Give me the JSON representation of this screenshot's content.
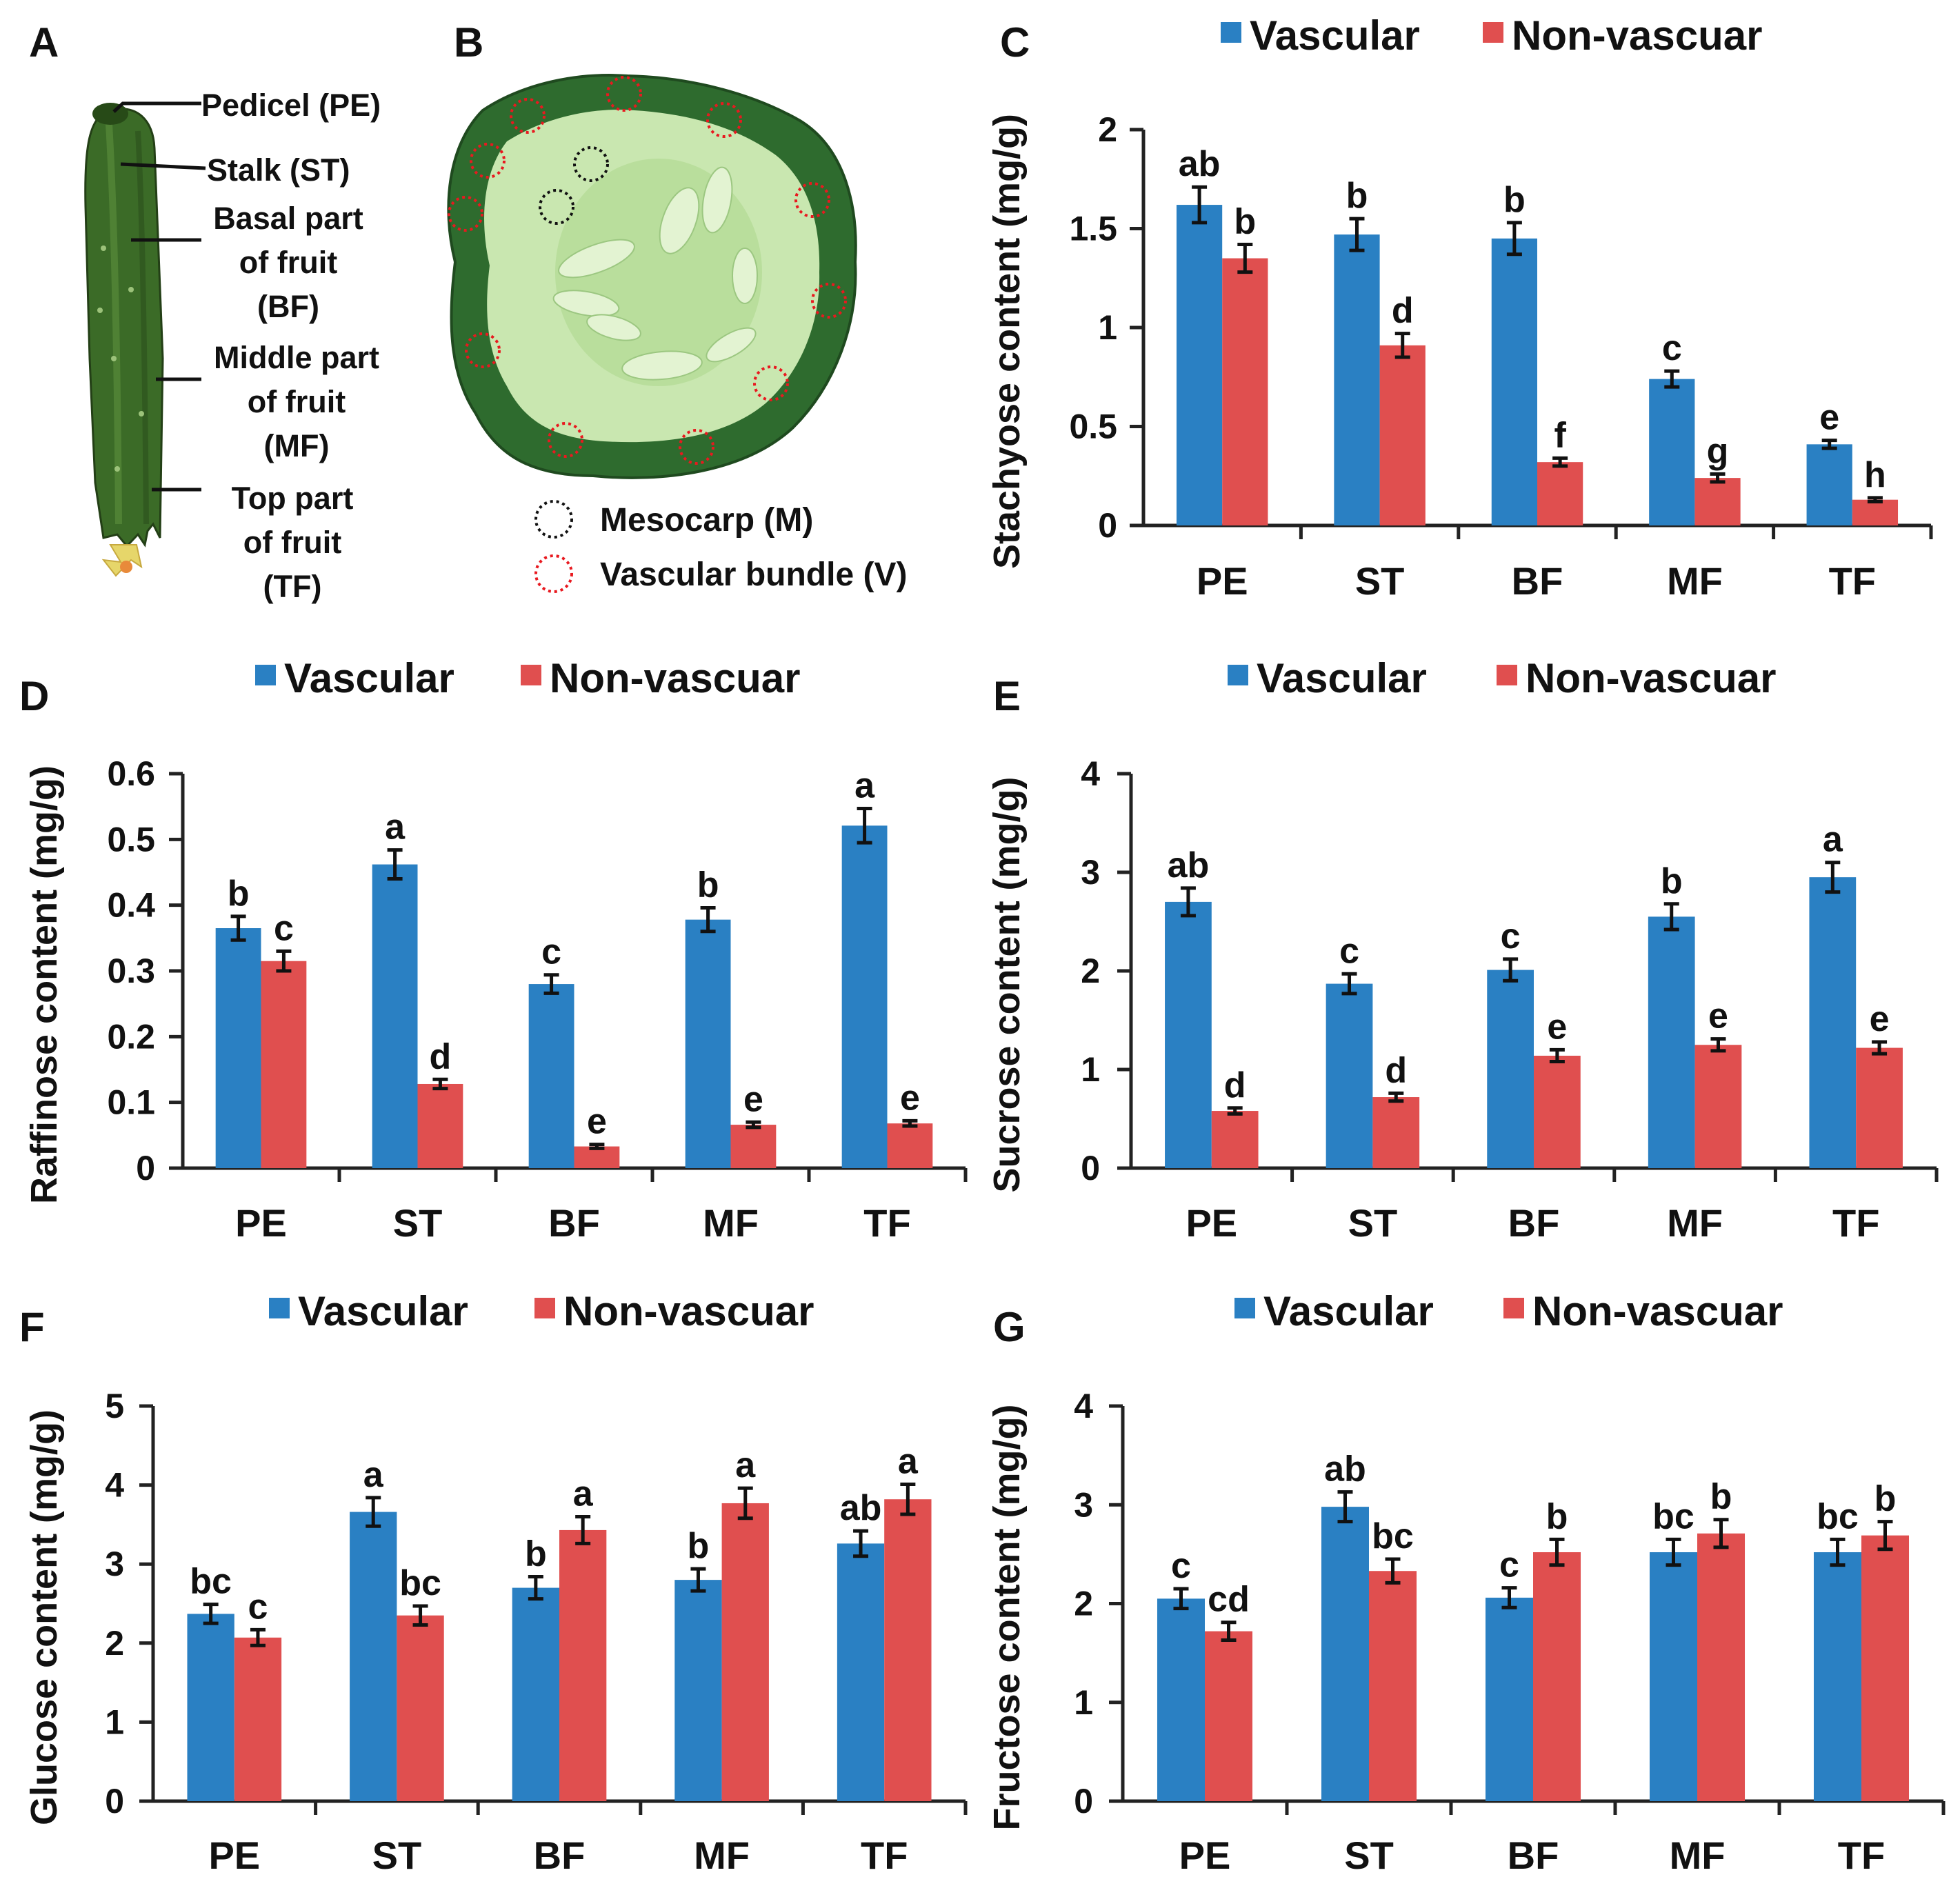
{
  "panels": {
    "A": {
      "letter": "A",
      "labels": [
        "Pedicel (PE)",
        "Stalk (ST)",
        "Basal part",
        "of fruit",
        "(BF)",
        "Middle part",
        "of fruit",
        "(MF)",
        "Top part",
        "of fruit",
        "(TF)"
      ]
    },
    "B": {
      "letter": "B",
      "legend": [
        {
          "label": "Mesocarp (M)",
          "color": "#111111"
        },
        {
          "label": "Vascular bundle (V)",
          "color": "#e8191f"
        }
      ]
    }
  },
  "colors": {
    "vascular": "#2a80c3",
    "nonvascular": "#e04f4f",
    "pulp": "#c9e7b0",
    "rind": "#2e6b2e",
    "fruit": "#3f6e2b"
  },
  "chart_data": [
    {
      "panel": "C",
      "type": "bar",
      "categories": [
        "PE",
        "ST",
        "BF",
        "MF",
        "TF"
      ],
      "series": [
        {
          "name": "Vascular",
          "values": [
            1.62,
            1.47,
            1.45,
            0.74,
            0.41
          ],
          "errors": [
            0.09,
            0.08,
            0.08,
            0.04,
            0.02
          ],
          "labels": [
            "ab",
            "b",
            "b",
            "c",
            "e"
          ]
        },
        {
          "name": "Non-vascuar",
          "values": [
            1.35,
            0.91,
            0.32,
            0.24,
            0.13
          ],
          "errors": [
            0.07,
            0.06,
            0.02,
            0.02,
            0.01
          ],
          "labels": [
            "b",
            "d",
            "f",
            "g",
            "h"
          ]
        }
      ],
      "ylabel": "Stachyose content (mg/g)",
      "ylim": [
        0,
        2
      ],
      "yticks": [
        0,
        0.5,
        1,
        1.5,
        2
      ],
      "ytick_labels": [
        "0",
        "0.5",
        "1",
        "1.5",
        "2"
      ],
      "legend": "top"
    },
    {
      "panel": "D",
      "type": "bar",
      "categories": [
        "PE",
        "ST",
        "BF",
        "MF",
        "TF"
      ],
      "series": [
        {
          "name": "Vascular",
          "values": [
            0.365,
            0.462,
            0.28,
            0.378,
            0.521
          ],
          "errors": [
            0.018,
            0.022,
            0.014,
            0.018,
            0.026
          ],
          "labels": [
            "b",
            "a",
            "c",
            "b",
            "a"
          ]
        },
        {
          "name": "Non-vascuar",
          "values": [
            0.315,
            0.128,
            0.033,
            0.066,
            0.068
          ],
          "errors": [
            0.015,
            0.007,
            0.003,
            0.004,
            0.004
          ],
          "labels": [
            "c",
            "d",
            "e",
            "e",
            "e"
          ]
        }
      ],
      "ylabel": "Raffinose content (mg/g)",
      "ylim": [
        0,
        0.6
      ],
      "yticks": [
        0,
        0.1,
        0.2,
        0.3,
        0.4,
        0.5,
        0.6
      ],
      "ytick_labels": [
        "0",
        "0.1",
        "0.2",
        "0.3",
        "0.4",
        "0.5",
        "0.6"
      ],
      "legend": "top"
    },
    {
      "panel": "E",
      "type": "bar",
      "categories": [
        "PE",
        "ST",
        "BF",
        "MF",
        "TF"
      ],
      "series": [
        {
          "name": "Vascular",
          "values": [
            2.7,
            1.87,
            2.01,
            2.55,
            2.95
          ],
          "errors": [
            0.14,
            0.1,
            0.11,
            0.13,
            0.15
          ],
          "labels": [
            "ab",
            "c",
            "c",
            "b",
            "a"
          ]
        },
        {
          "name": "Non-vascuar",
          "values": [
            0.58,
            0.72,
            1.14,
            1.25,
            1.22
          ],
          "errors": [
            0.03,
            0.04,
            0.06,
            0.06,
            0.06
          ],
          "labels": [
            "d",
            "d",
            "e",
            "e",
            "e"
          ]
        }
      ],
      "ylabel": "Sucrose content (mg/g)",
      "ylim": [
        0,
        4
      ],
      "yticks": [
        0,
        1,
        2,
        3,
        4
      ],
      "ytick_labels": [
        "0",
        "1",
        "2",
        "3",
        "4"
      ],
      "legend": "top"
    },
    {
      "panel": "F",
      "type": "bar",
      "categories": [
        "PE",
        "ST",
        "BF",
        "MF",
        "TF"
      ],
      "series": [
        {
          "name": "Vascular",
          "values": [
            2.37,
            3.66,
            2.7,
            2.8,
            3.26
          ],
          "errors": [
            0.12,
            0.18,
            0.14,
            0.14,
            0.16
          ],
          "labels": [
            "bc",
            "a",
            "b",
            "b",
            "ab"
          ]
        },
        {
          "name": "Non-vascuar",
          "values": [
            2.07,
            2.35,
            3.43,
            3.77,
            3.82
          ],
          "errors": [
            0.1,
            0.12,
            0.17,
            0.19,
            0.19
          ],
          "labels": [
            "c",
            "bc",
            "a",
            "a",
            "a"
          ]
        }
      ],
      "ylabel": "Glucose content (mg/g)",
      "ylim": [
        0,
        5
      ],
      "yticks": [
        0,
        1,
        2,
        3,
        4,
        5
      ],
      "ytick_labels": [
        "0",
        "1",
        "2",
        "3",
        "4",
        "5"
      ],
      "legend": "top"
    },
    {
      "panel": "G",
      "type": "bar",
      "categories": [
        "PE",
        "ST",
        "BF",
        "MF",
        "TF"
      ],
      "series": [
        {
          "name": "Vascular",
          "values": [
            2.05,
            2.98,
            2.06,
            2.52,
            2.52
          ],
          "errors": [
            0.1,
            0.15,
            0.1,
            0.13,
            0.13
          ],
          "labels": [
            "c",
            "ab",
            "c",
            "bc",
            "bc"
          ]
        },
        {
          "name": "Non-vascuar",
          "values": [
            1.72,
            2.33,
            2.52,
            2.71,
            2.69
          ],
          "errors": [
            0.09,
            0.12,
            0.13,
            0.14,
            0.14
          ],
          "labels": [
            "cd",
            "bc",
            "b",
            "b",
            "b"
          ]
        }
      ],
      "ylabel": "Fructose content (mg/g)",
      "ylim": [
        0,
        4
      ],
      "yticks": [
        0,
        1,
        2,
        3,
        4
      ],
      "ytick_labels": [
        "0",
        "1",
        "2",
        "3",
        "4"
      ],
      "legend": "top"
    }
  ]
}
